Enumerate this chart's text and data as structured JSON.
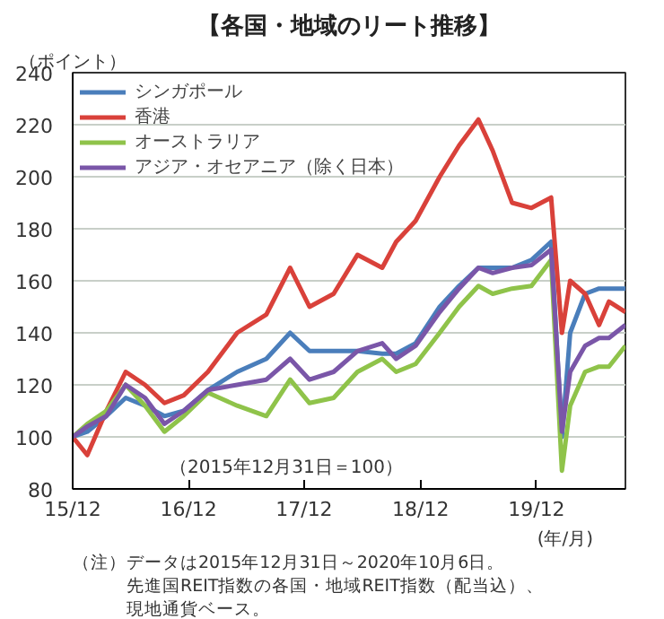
{
  "chart_data": {
    "type": "line",
    "title": "【各国・地域のリート推移】",
    "ylabel": "（ポイント）",
    "xlabel": "(年/月)",
    "x": [
      "2015-12-31",
      "2016-02-15",
      "2016-04-15",
      "2016-06-15",
      "2016-08-15",
      "2016-10-15",
      "2016-12-15",
      "2017-03-01",
      "2017-06-01",
      "2017-09-01",
      "2017-11-15",
      "2018-01-15",
      "2018-04-01",
      "2018-06-15",
      "2018-09-01",
      "2018-10-15",
      "2018-12-15",
      "2019-03-01",
      "2019-05-01",
      "2019-07-01",
      "2019-08-15",
      "2019-10-15",
      "2019-12-15",
      "2020-02-15",
      "2020-03-20",
      "2020-04-15",
      "2020-06-01",
      "2020-07-15",
      "2020-08-15",
      "2020-10-06"
    ],
    "series": [
      {
        "name": "シンガポール",
        "color": "#4a7ebb",
        "values": [
          100,
          102,
          108,
          115,
          112,
          108,
          110,
          118,
          125,
          130,
          140,
          133,
          133,
          133,
          132,
          132,
          136,
          150,
          158,
          165,
          165,
          165,
          168,
          175,
          100,
          140,
          155,
          157,
          157,
          157
        ]
      },
      {
        "name": "香港",
        "color": "#d9413a",
        "values": [
          100,
          93,
          110,
          125,
          120,
          113,
          116,
          125,
          140,
          147,
          165,
          150,
          155,
          170,
          165,
          175,
          183,
          200,
          212,
          222,
          210,
          190,
          188,
          192,
          140,
          160,
          155,
          143,
          152,
          148
        ]
      },
      {
        "name": "オーストラリア",
        "color": "#8fc34a",
        "values": [
          100,
          105,
          110,
          120,
          112,
          102,
          108,
          117,
          112,
          108,
          122,
          113,
          115,
          125,
          130,
          125,
          128,
          140,
          150,
          158,
          155,
          157,
          158,
          168,
          87,
          112,
          125,
          127,
          127,
          135
        ]
      },
      {
        "name": "アジア・オセアニア（除く日本）",
        "color": "#7a56a8",
        "values": [
          100,
          104,
          108,
          120,
          115,
          105,
          110,
          118,
          120,
          122,
          130,
          122,
          125,
          133,
          136,
          130,
          135,
          148,
          157,
          165,
          163,
          165,
          166,
          172,
          102,
          125,
          135,
          138,
          138,
          143
        ]
      }
    ],
    "xlim": [
      "2015-12-31",
      "2020-10-06"
    ],
    "xticks": [
      {
        "value": "2015-12-31",
        "label": "15/12"
      },
      {
        "value": "2016-12-30",
        "label": "16/12"
      },
      {
        "value": "2017-12-29",
        "label": "17/12"
      },
      {
        "value": "2018-12-31",
        "label": "18/12"
      },
      {
        "value": "2019-12-31",
        "label": "19/12"
      }
    ],
    "ylim": [
      80,
      240
    ],
    "yticks": [
      80,
      100,
      120,
      140,
      160,
      180,
      200,
      220,
      240
    ],
    "grid": "y",
    "legend": "top left",
    "line_style": "solid",
    "annotations": [
      "（2015年12月31日＝100）",
      "（注）データは2015年12月31日～2020年10月6日。",
      "　　　先進国REIT指数の各国・地域REIT指数（配当込）、",
      "　　　現地通貨ベース。"
    ]
  }
}
